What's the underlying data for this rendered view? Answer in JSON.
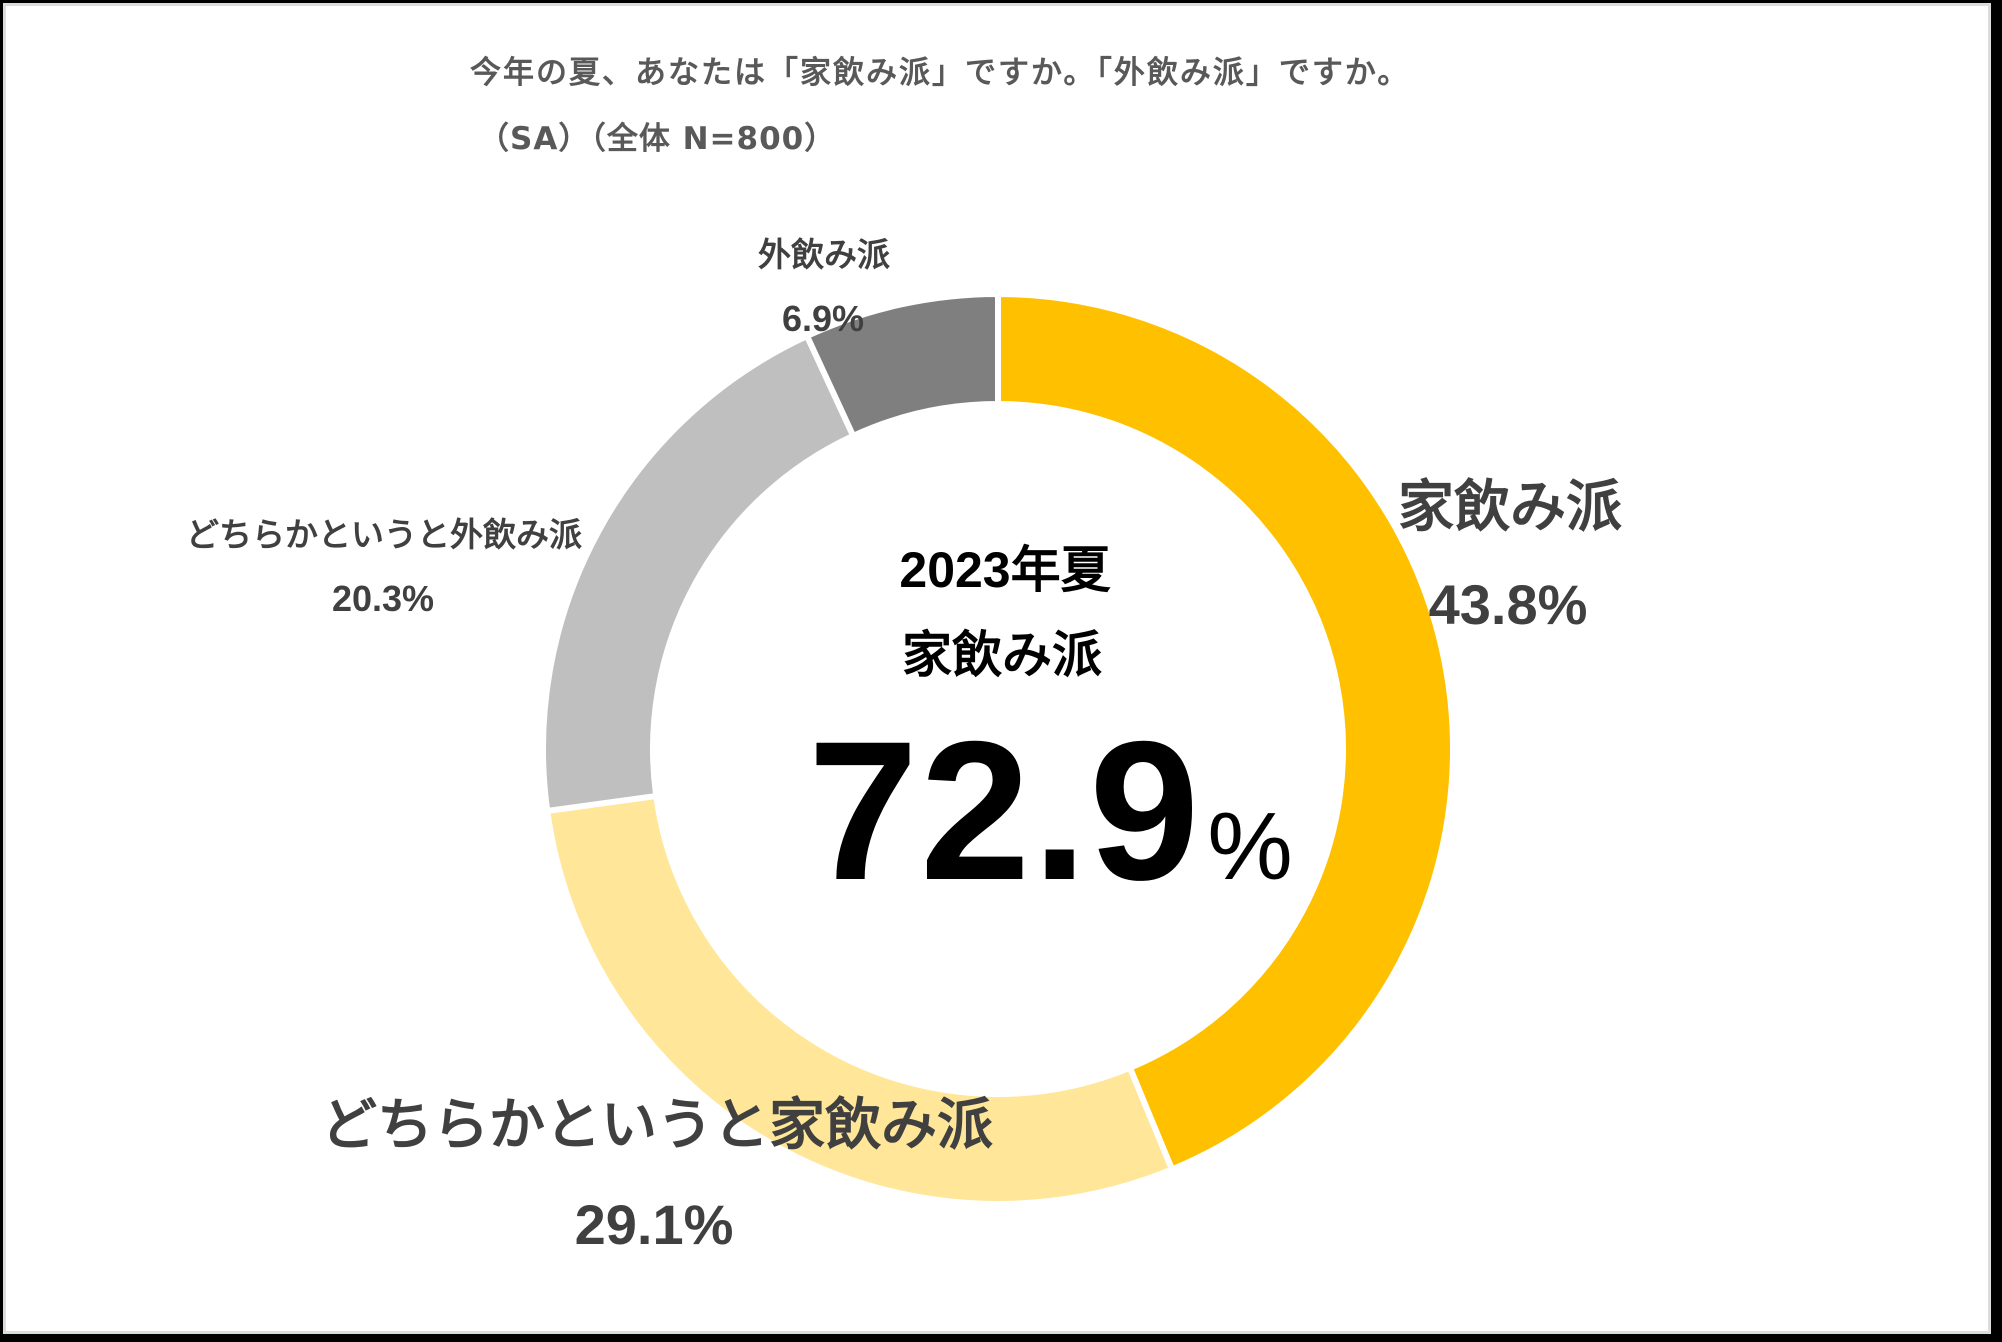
{
  "title": {
    "line1": "今年の夏、あなたは「家飲み派」ですか。「外飲み派」ですか。",
    "line2": "（SA）（全体 N=800）"
  },
  "center": {
    "year": "2023年夏",
    "label": "家飲み派",
    "value": "72.9",
    "unit": "%"
  },
  "segments": [
    {
      "name": "家飲み派",
      "value_label": "43.8%",
      "value": 43.8,
      "color": "#FFC000"
    },
    {
      "name": "どちらかというと家飲み派",
      "value_label": "29.1%",
      "value": 29.1,
      "color": "#FFE699"
    },
    {
      "name": "どちらかというと外飲み派",
      "value_label": "20.3%",
      "value": 20.3,
      "color": "#BFBFBF"
    },
    {
      "name": "外飲み派",
      "value_label": "6.9%",
      "value": 6.9,
      "color": "#7F7F7F"
    }
  ],
  "chart_data": {
    "type": "pie",
    "subtype": "donut",
    "title": "今年の夏、あなたは「家飲み派」ですか。「外飲み派」ですか。（SA）（全体 N=800）",
    "categories": [
      "家飲み派",
      "どちらかというと家飲み派",
      "どちらかというと外飲み派",
      "外飲み派"
    ],
    "values": [
      43.8,
      29.1,
      20.3,
      6.9
    ],
    "colors": [
      "#FFC000",
      "#FFE699",
      "#BFBFBF",
      "#7F7F7F"
    ],
    "unit": "%",
    "sample_size": "N=800",
    "center_annotation": {
      "text": "2023年夏 家飲み派",
      "value": 72.9,
      "unit": "%"
    },
    "start_angle_deg": 0,
    "direction": "clockwise",
    "legend": "none (direct labels)"
  }
}
